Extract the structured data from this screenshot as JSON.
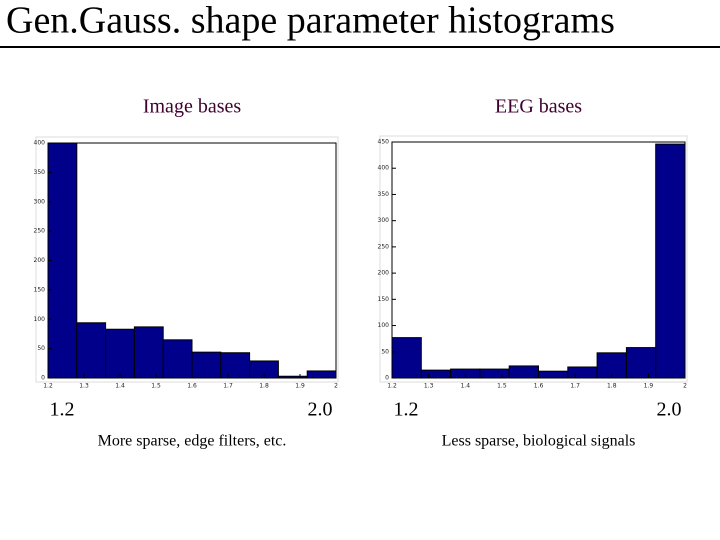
{
  "title": "Gen.Gauss. shape parameter histograms",
  "chart_data": [
    {
      "type": "histogram",
      "title": "Image bases",
      "color": "#00008b",
      "bins": [
        1.2,
        1.28,
        1.36,
        1.44,
        1.52,
        1.6,
        1.68,
        1.76,
        1.84,
        1.92,
        2.0
      ],
      "values": [
        400,
        94,
        83,
        87,
        65,
        44,
        43,
        29,
        3,
        12
      ],
      "xlim": [
        1.2,
        2.0
      ],
      "xticks": [
        1.2,
        1.3,
        1.4,
        1.5,
        1.6,
        1.7,
        1.8,
        1.9,
        2
      ],
      "ylim": [
        0,
        400
      ],
      "yticks": [
        0,
        50,
        100,
        150,
        200,
        250,
        300,
        350,
        400
      ],
      "range_labels": [
        {
          "value": 1.2,
          "label": "1.2"
        },
        {
          "value": 2,
          "label": "2.0"
        }
      ],
      "caption": "More sparse, edge filters, etc."
    },
    {
      "type": "histogram",
      "title": "EEG bases",
      "color": "#00008b",
      "bins": [
        1.2,
        1.28,
        1.36,
        1.44,
        1.52,
        1.6,
        1.68,
        1.76,
        1.84,
        1.92,
        2.0
      ],
      "values": [
        77,
        15,
        17,
        17,
        23,
        13,
        21,
        48,
        58,
        446
      ],
      "xlim": [
        1.2,
        2.0
      ],
      "xticks": [
        1.2,
        1.3,
        1.4,
        1.5,
        1.6,
        1.7,
        1.8,
        1.9,
        2
      ],
      "ylim": [
        0,
        450
      ],
      "yticks": [
        0,
        50,
        100,
        150,
        200,
        250,
        300,
        350,
        400,
        450
      ],
      "range_labels": [
        {
          "value": 1.2,
          "label": "1.2"
        },
        {
          "value": 2,
          "label": "2.0"
        }
      ],
      "caption": "Less sparse, biological signals"
    }
  ]
}
